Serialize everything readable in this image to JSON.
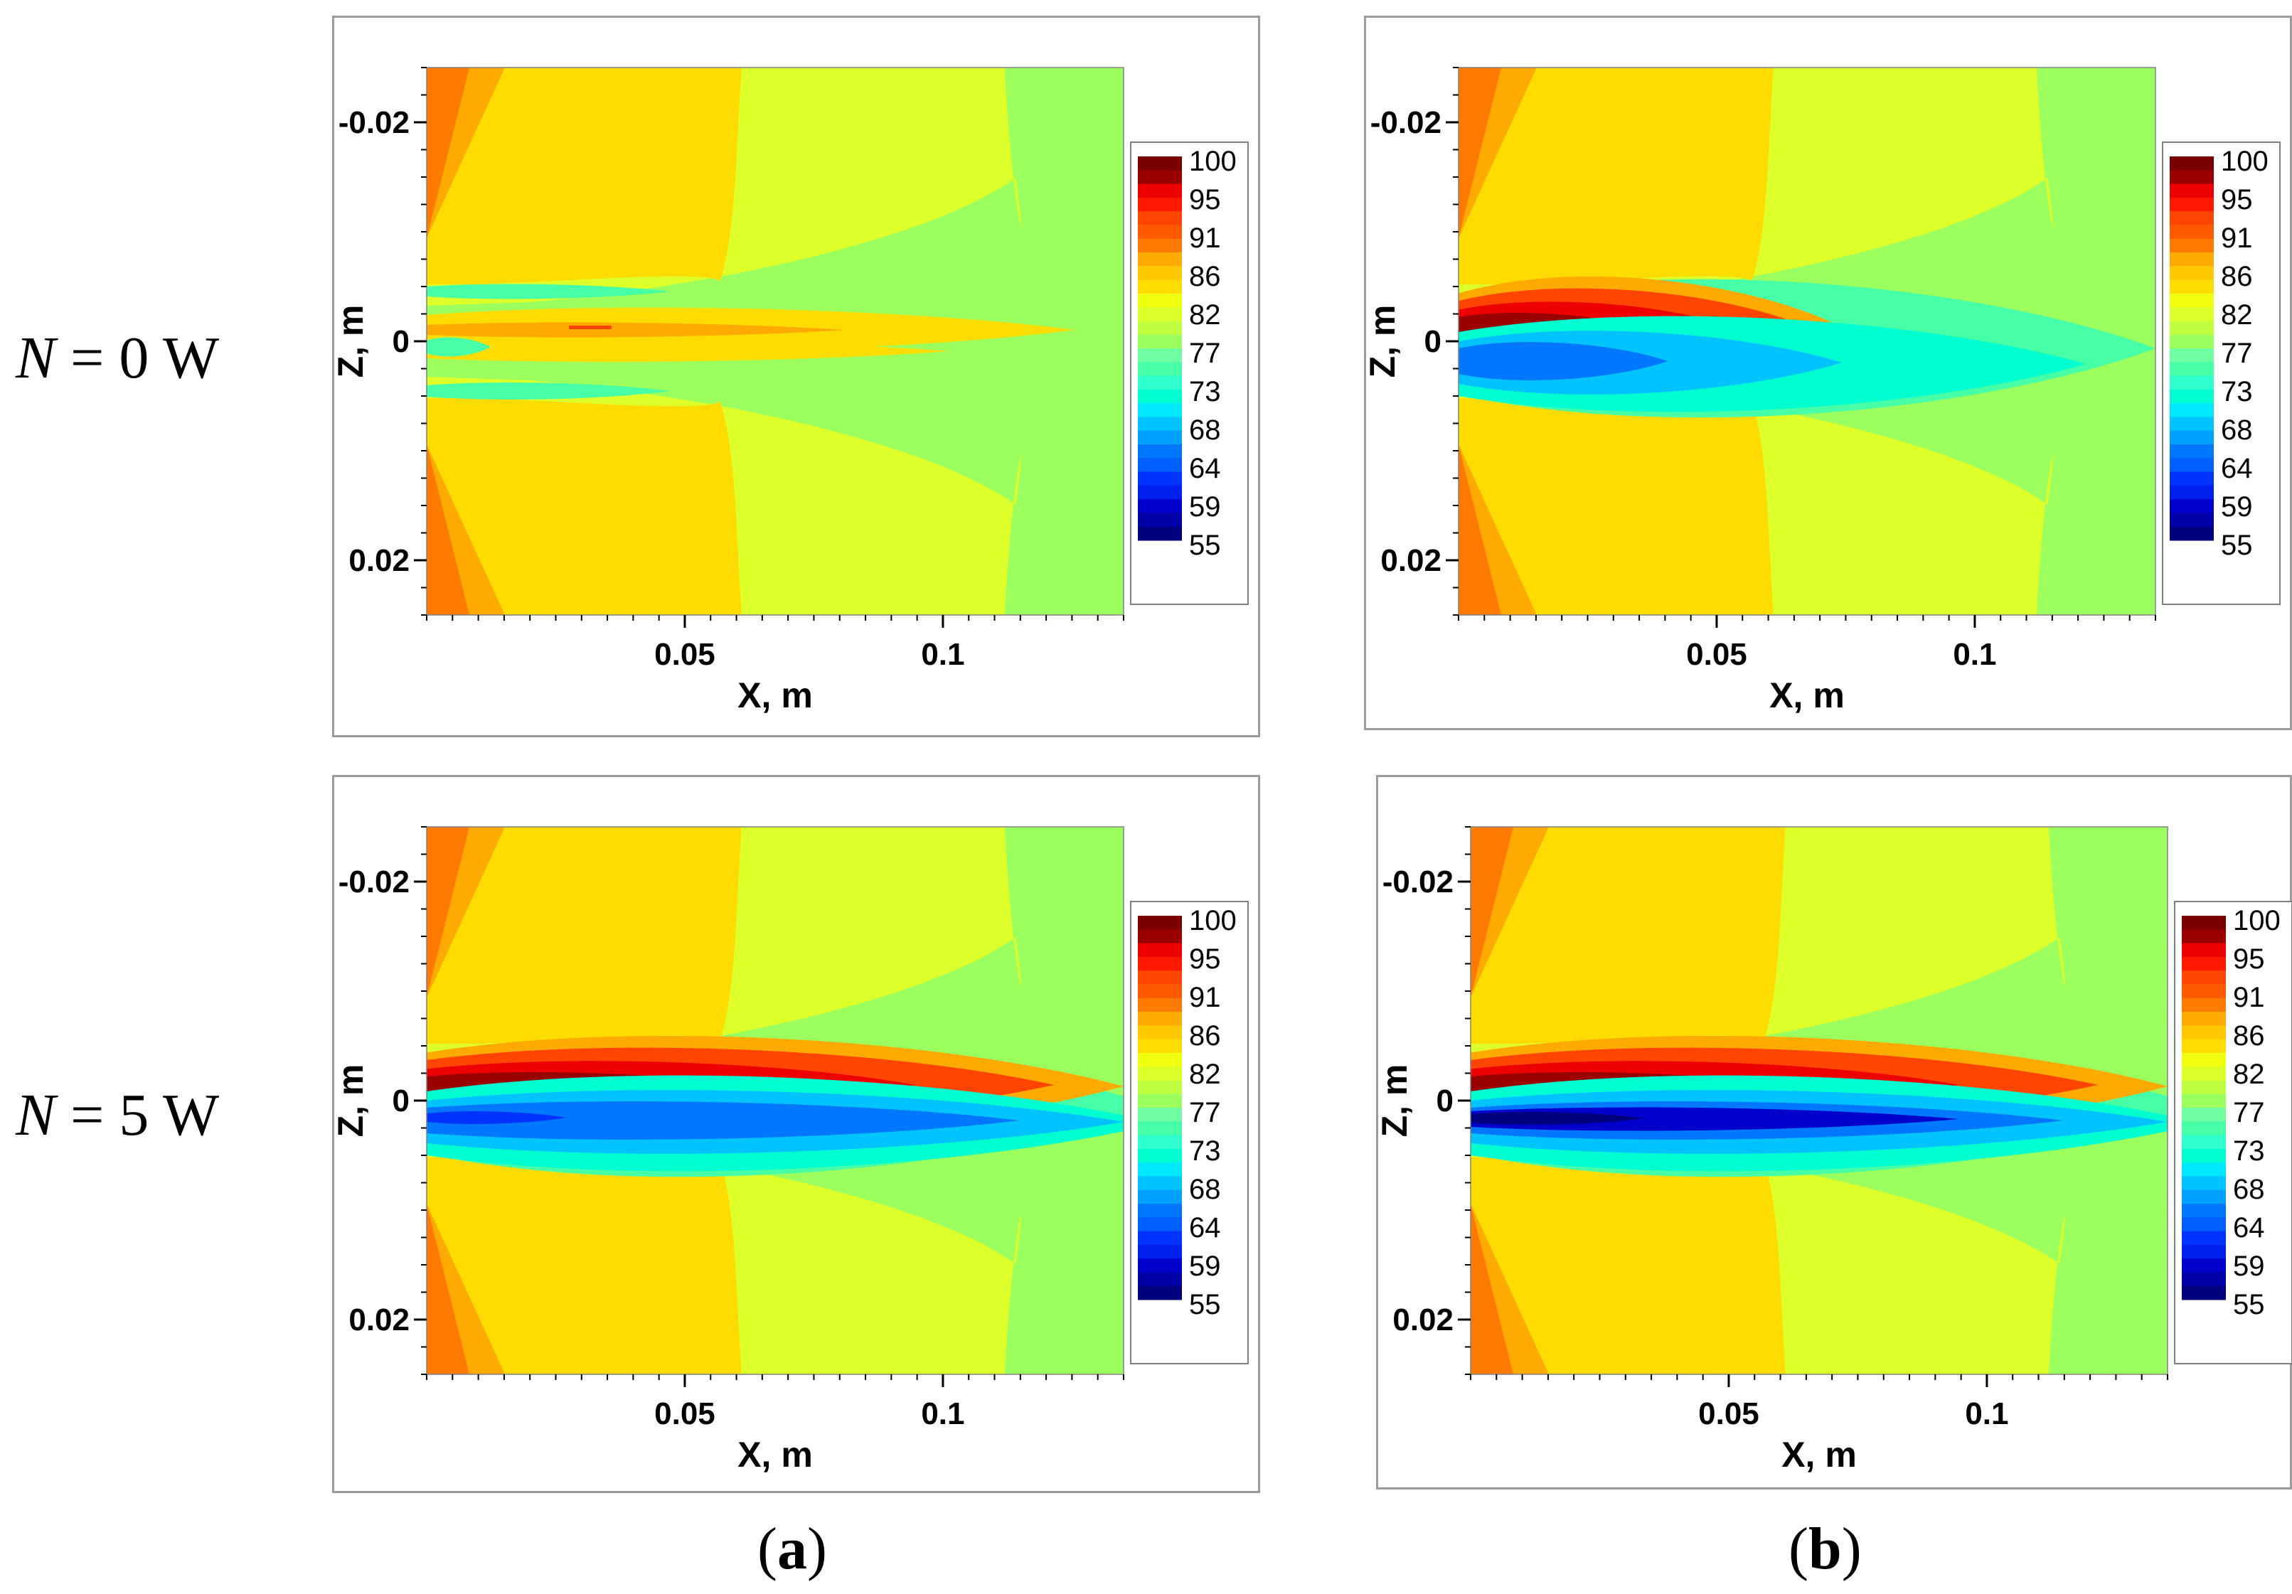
{
  "rows": [
    {
      "n_label": "N",
      "eq_label": " = 0 W"
    },
    {
      "n_label": "N",
      "eq_label": " = 5 W"
    }
  ],
  "columns": [
    {
      "open": "(",
      "letter": "a",
      "close": ")"
    },
    {
      "open": "(",
      "letter": "b",
      "close": ")"
    }
  ],
  "colors": {
    "c55": "#00007f",
    "c59": "#0000cc",
    "c64": "#0033ff",
    "c68": "#0077ff",
    "c73": "#00c3ff",
    "c75": "#00ffd0",
    "c77": "#47ffa6",
    "c80": "#9bff5e",
    "c82": "#ddff2a",
    "c84": "#ffdc00",
    "c86": "#ffaa00",
    "c88": "#ff7a00",
    "c91": "#ff4500",
    "c95": "#ee0000",
    "c100": "#9a0000",
    "c_top": "#7a0000"
  },
  "chart_data": [
    {
      "id": "a-top",
      "type": "heatmap",
      "title": "",
      "xlabel": "X, m",
      "ylabel": "Z, m",
      "xlim": [
        0.0,
        0.135
      ],
      "ylim": [
        -0.025,
        0.025
      ],
      "y_inverted": true,
      "x_ticks": [
        {
          "value": 0.05,
          "label": "0.05"
        },
        {
          "value": 0.1,
          "label": "0.1"
        }
      ],
      "y_ticks": [
        {
          "value": -0.02,
          "label": "-0.02"
        },
        {
          "value": 0.0,
          "label": "0"
        },
        {
          "value": 0.02,
          "label": "0.02"
        }
      ],
      "colorbar": {
        "range": [
          55,
          100
        ],
        "labels": [
          "100",
          "95",
          "91",
          "86",
          "82",
          "77",
          "73",
          "68",
          "64",
          "59",
          "55"
        ]
      },
      "jet_intensity": 0
    },
    {
      "id": "b-top",
      "type": "heatmap",
      "title": "",
      "xlabel": "X, m",
      "ylabel": "Z, m",
      "xlim": [
        0.0,
        0.135
      ],
      "ylim": [
        -0.025,
        0.025
      ],
      "y_inverted": true,
      "x_ticks": [
        {
          "value": 0.05,
          "label": "0.05"
        },
        {
          "value": 0.1,
          "label": "0.1"
        }
      ],
      "y_ticks": [
        {
          "value": -0.02,
          "label": "-0.02"
        },
        {
          "value": 0.0,
          "label": "0"
        },
        {
          "value": 0.02,
          "label": "0.02"
        }
      ],
      "colorbar": {
        "range": [
          55,
          100
        ],
        "labels": [
          "100",
          "95",
          "91",
          "86",
          "82",
          "77",
          "73",
          "68",
          "64",
          "59",
          "55"
        ]
      },
      "jet_intensity": 1
    },
    {
      "id": "a-bottom",
      "type": "heatmap",
      "title": "",
      "xlabel": "X, m",
      "ylabel": "Z, m",
      "xlim": [
        0.0,
        0.135
      ],
      "ylim": [
        -0.025,
        0.025
      ],
      "y_inverted": true,
      "x_ticks": [
        {
          "value": 0.05,
          "label": "0.05"
        },
        {
          "value": 0.1,
          "label": "0.1"
        }
      ],
      "y_ticks": [
        {
          "value": -0.02,
          "label": "-0.02"
        },
        {
          "value": 0.0,
          "label": "0"
        },
        {
          "value": 0.02,
          "label": "0.02"
        }
      ],
      "colorbar": {
        "range": [
          55,
          100
        ],
        "labels": [
          "100",
          "95",
          "91",
          "86",
          "82",
          "77",
          "73",
          "68",
          "64",
          "59",
          "55"
        ]
      },
      "jet_intensity": 2
    },
    {
      "id": "b-bottom",
      "type": "heatmap",
      "title": "",
      "xlabel": "X, m",
      "ylabel": "Z, m",
      "xlim": [
        0.0,
        0.135
      ],
      "ylim": [
        -0.025,
        0.025
      ],
      "y_inverted": true,
      "x_ticks": [
        {
          "value": 0.05,
          "label": "0.05"
        },
        {
          "value": 0.1,
          "label": "0.1"
        }
      ],
      "y_ticks": [
        {
          "value": -0.02,
          "label": "-0.02"
        },
        {
          "value": 0.0,
          "label": "0"
        },
        {
          "value": 0.02,
          "label": "0.02"
        }
      ],
      "colorbar": {
        "range": [
          55,
          100
        ],
        "labels": [
          "100",
          "95",
          "91",
          "86",
          "82",
          "77",
          "73",
          "68",
          "64",
          "59",
          "55"
        ]
      },
      "jet_intensity": 3
    }
  ]
}
